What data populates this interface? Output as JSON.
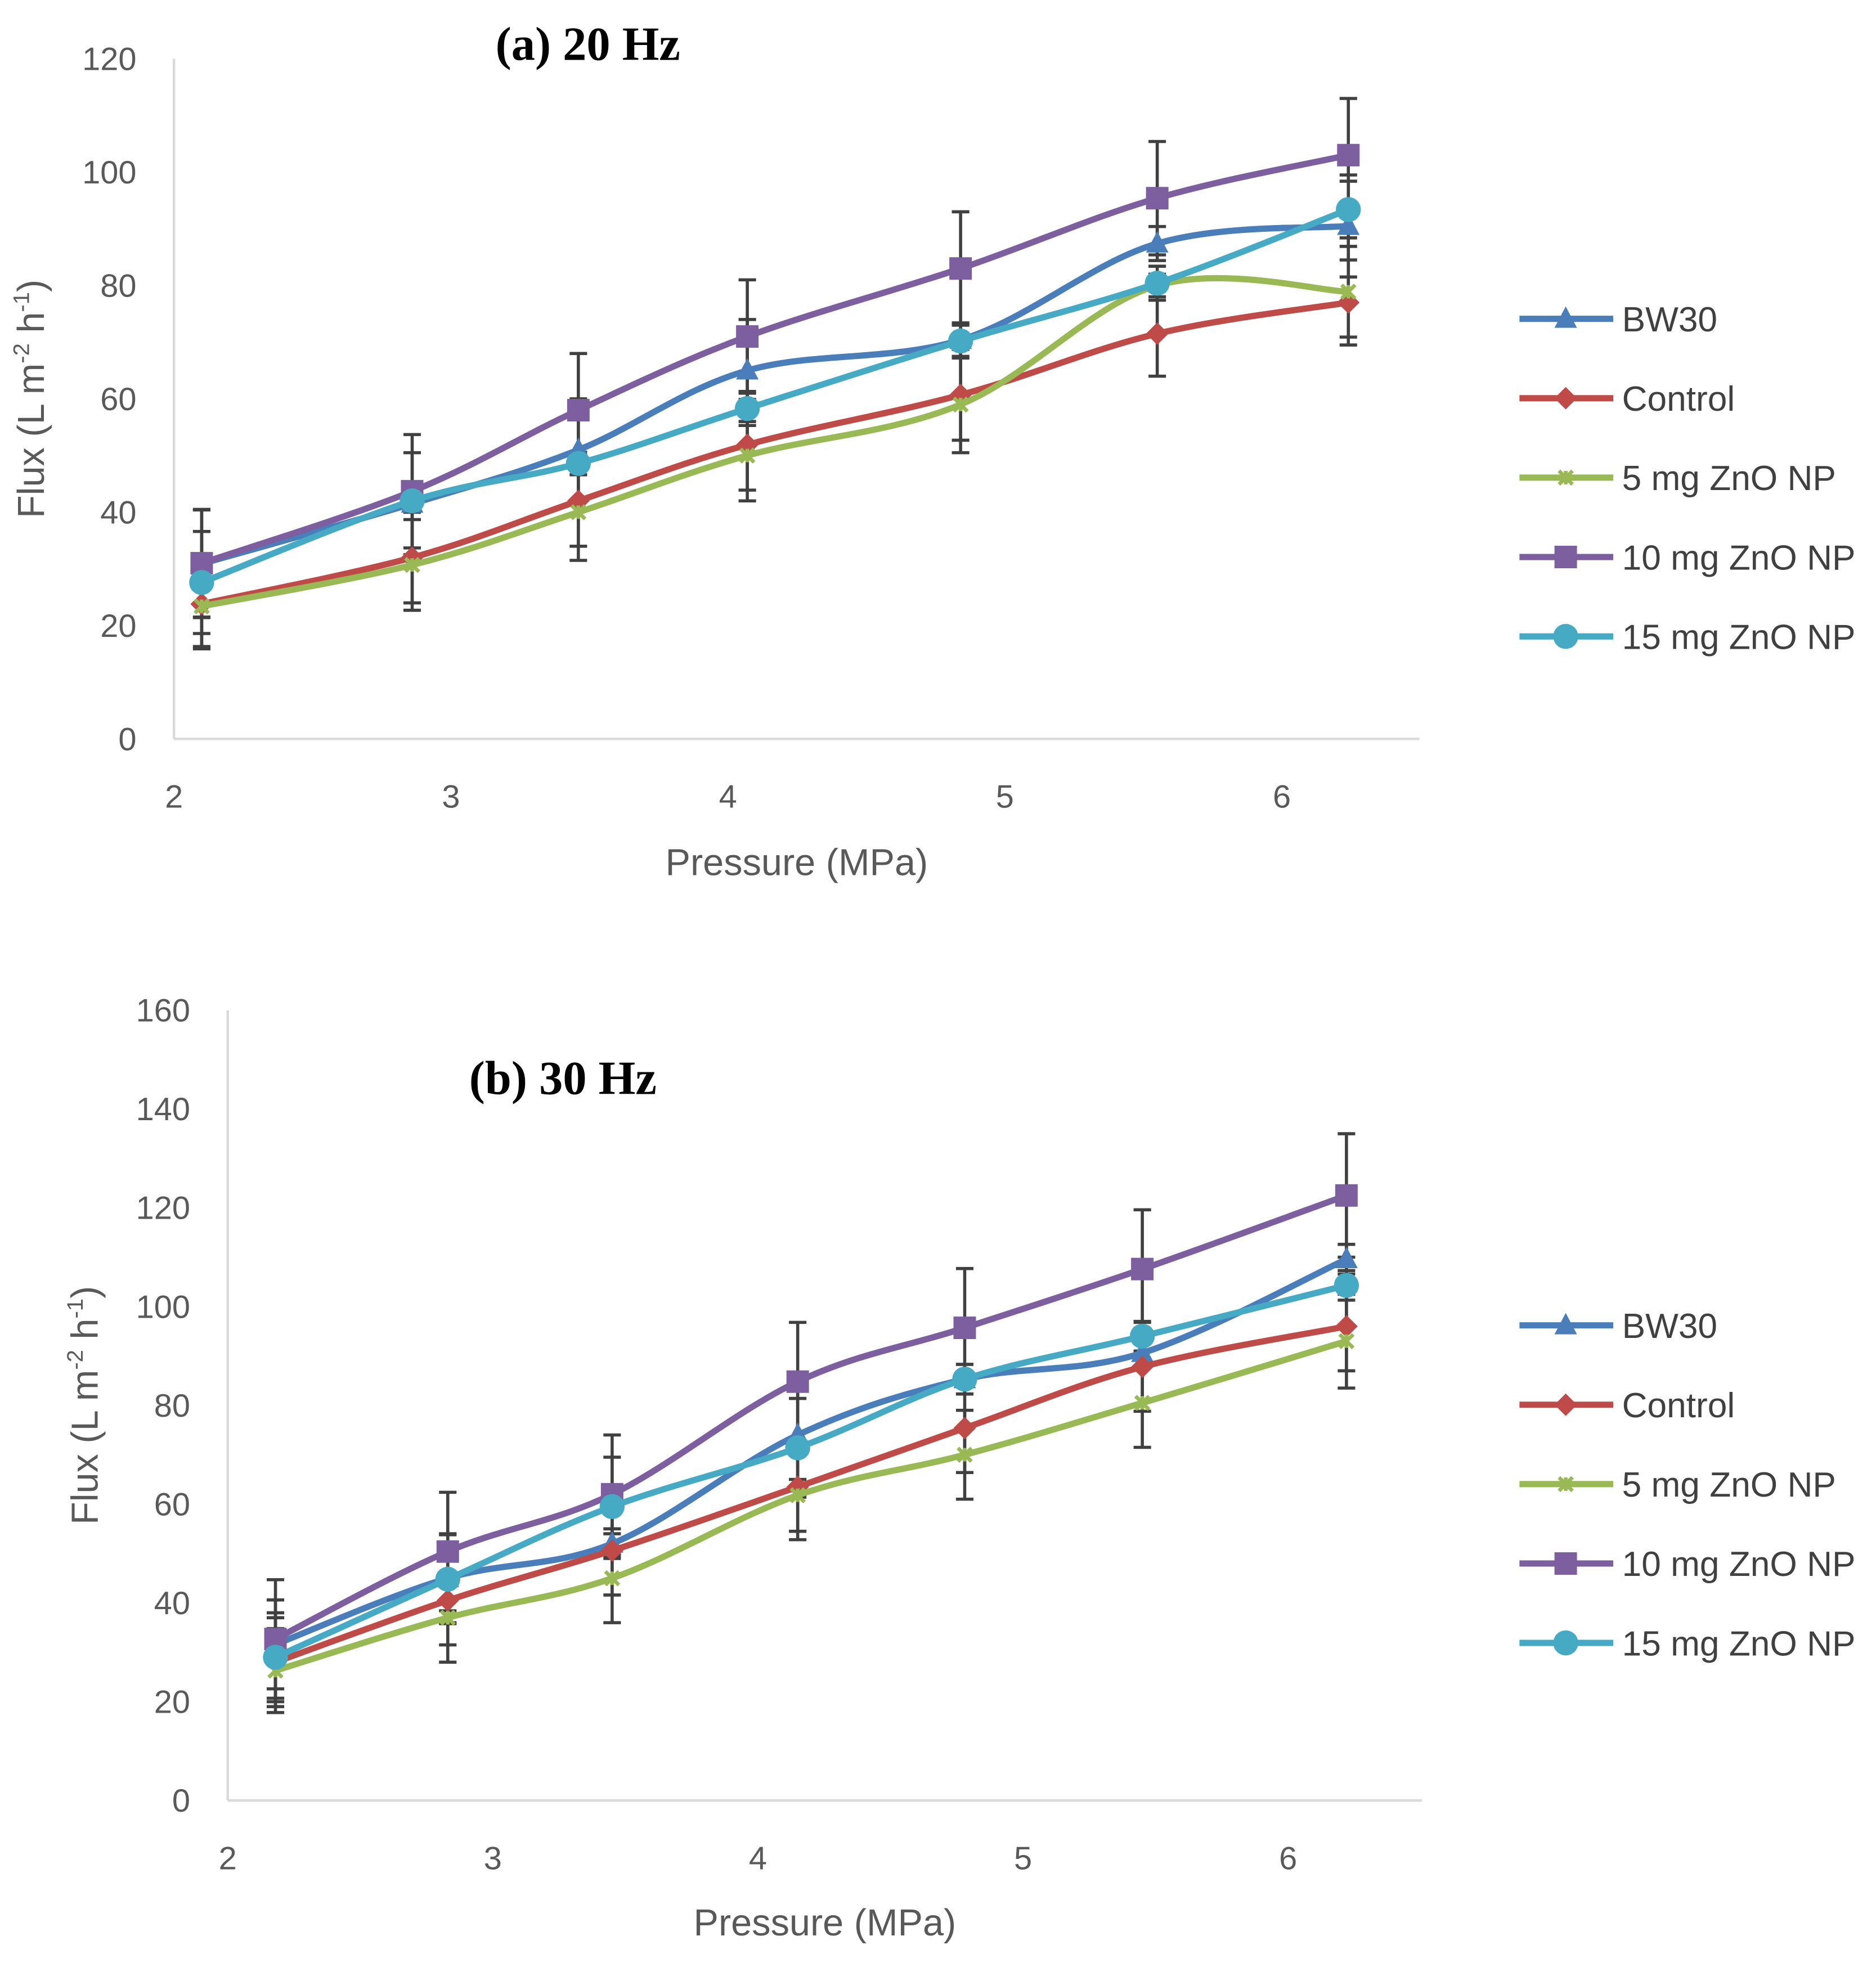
{
  "chart_data": [
    {
      "type": "line",
      "title": "(a) 20 Hz",
      "xlabel": "Pressure (MPa)",
      "ylabel": "Flux (L m-2 h-1)",
      "ylabel_parts": [
        "Flux (L m",
        "-2",
        " h",
        "-1",
        ")"
      ],
      "xlim": [
        2,
        6.5
      ],
      "ylim": [
        0,
        120
      ],
      "xticks": [
        2,
        3,
        4,
        5,
        6
      ],
      "yticks": [
        0,
        20,
        40,
        60,
        80,
        100,
        120
      ],
      "legend": "right",
      "grid": false,
      "x": [
        2.1,
        2.86,
        3.46,
        4.07,
        4.84,
        5.55,
        6.24
      ],
      "series": [
        {
          "name": "BW30",
          "color": "#4a7ebb",
          "marker": "triangle",
          "values": [
            30.9,
            41.5,
            51,
            65,
            70.4,
            87.4,
            90.5
          ],
          "errors": [
            9.5,
            9,
            9,
            9,
            3,
            3,
            9
          ]
        },
        {
          "name": "Control",
          "color": "#be4b48",
          "marker": "diamond",
          "values": [
            23.8,
            32,
            42,
            51.9,
            60.7,
            71.5,
            77
          ],
          "errors": [
            7.5,
            8,
            8,
            8,
            8,
            7.5,
            7.5
          ]
        },
        {
          "name": "5 mg ZnO NP",
          "color": "#98b954",
          "marker": "star",
          "values": [
            23.4,
            30.7,
            40,
            50,
            59,
            80,
            78.9
          ],
          "errors": [
            7.5,
            8,
            8.5,
            8,
            8.5,
            2,
            8
          ]
        },
        {
          "name": "10 mg ZnO NP",
          "color": "#7d5fa0",
          "marker": "square",
          "values": [
            31,
            43.7,
            58,
            71,
            83,
            95.4,
            103
          ],
          "errors": [
            9.5,
            10,
            10,
            10,
            10,
            10,
            10
          ]
        },
        {
          "name": "15 mg ZnO NP",
          "color": "#46aac5",
          "marker": "circle",
          "values": [
            27.6,
            42,
            48.6,
            58.3,
            70.2,
            80.4,
            93.4
          ],
          "errors": [
            9,
            2,
            2,
            3,
            3,
            3,
            5
          ]
        }
      ]
    },
    {
      "type": "line",
      "title": "(b) 30 Hz",
      "xlabel": "Pressure (MPa)",
      "ylabel": "Flux (L m-2 h-1)",
      "ylabel_parts": [
        "Flux (L m",
        "-2",
        " h",
        "-1",
        ")"
      ],
      "xlim": [
        2,
        6.5
      ],
      "ylim": [
        0,
        160
      ],
      "xticks": [
        2,
        3,
        4,
        5,
        6
      ],
      "yticks": [
        0,
        20,
        40,
        60,
        80,
        100,
        120,
        140,
        160
      ],
      "legend": "right",
      "grid": false,
      "x": [
        2.18,
        2.83,
        3.45,
        4.15,
        4.78,
        5.45,
        6.22
      ],
      "series": [
        {
          "name": "BW30",
          "color": "#4a7ebb",
          "marker": "triangle",
          "values": [
            31.6,
            45,
            52,
            74,
            85.3,
            90.6,
            109.6
          ],
          "errors": [
            9,
            9,
            3,
            9,
            3,
            3,
            3
          ]
        },
        {
          "name": "Control",
          "color": "#be4b48",
          "marker": "diamond",
          "values": [
            28,
            40.5,
            50.6,
            63.5,
            75.4,
            87.8,
            96
          ],
          "errors": [
            9,
            9,
            9,
            9,
            9,
            9,
            9
          ]
        },
        {
          "name": "5 mg ZnO NP",
          "color": "#98b954",
          "marker": "star",
          "values": [
            26.3,
            37,
            45,
            61.8,
            70,
            80.5,
            93
          ],
          "errors": [
            8.5,
            9,
            9,
            9,
            9,
            9,
            9.5
          ]
        },
        {
          "name": "10 mg ZnO NP",
          "color": "#7d5fa0",
          "marker": "square",
          "values": [
            32.7,
            50.4,
            62,
            84.8,
            95.7,
            107.6,
            122.5
          ],
          "errors": [
            12,
            12,
            12,
            12,
            12,
            12,
            12.5
          ]
        },
        {
          "name": "15 mg ZnO NP",
          "color": "#46aac5",
          "marker": "circle",
          "values": [
            29,
            44.8,
            59.5,
            71.4,
            85.3,
            94,
            104.3
          ],
          "errors": [
            9,
            9,
            10,
            10,
            3,
            3,
            3
          ]
        }
      ]
    }
  ]
}
